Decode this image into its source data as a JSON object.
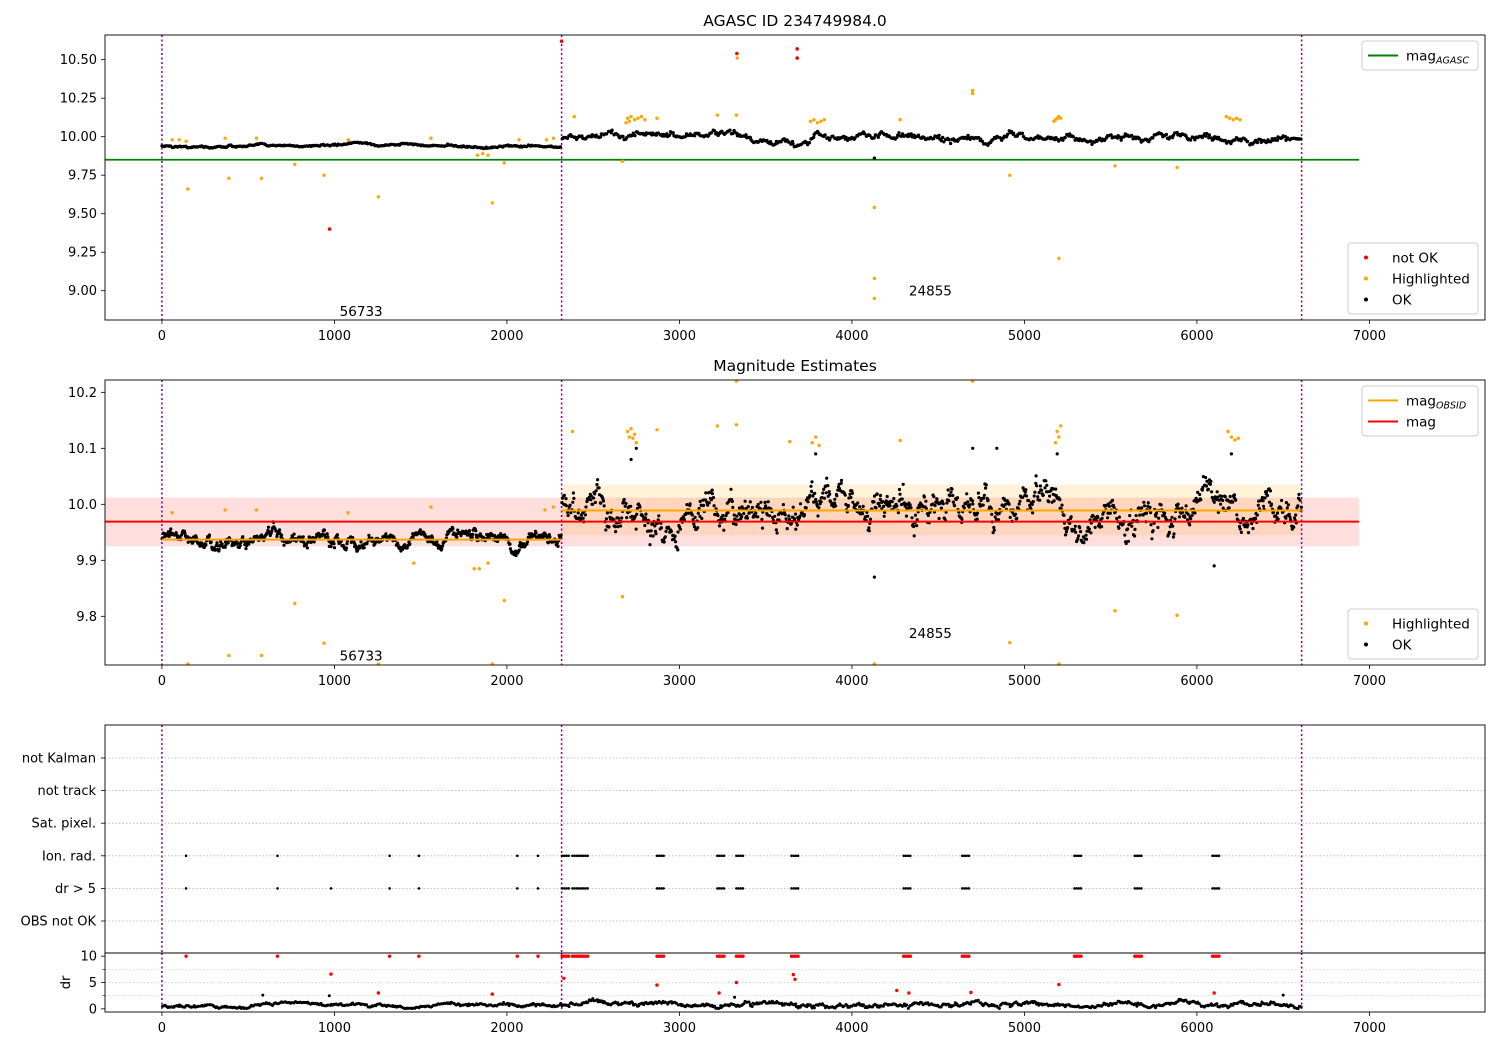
{
  "chart_data": [
    {
      "type": "scatter",
      "title": "AGASC ID 234749984.0",
      "xlabel": "",
      "ylabel": "",
      "xlim": [
        -330,
        7670
      ],
      "ylim": [
        8.81,
        10.66
      ],
      "xticks": [
        0,
        1000,
        2000,
        3000,
        4000,
        5000,
        6000,
        7000
      ],
      "yticks": [
        9.0,
        9.25,
        9.5,
        9.75,
        10.0,
        10.25,
        10.5
      ],
      "ytick_labels": [
        "9.00",
        "9.25",
        "9.50",
        "9.75",
        "10.00",
        "10.25",
        "10.50"
      ],
      "grid": false,
      "obs_boundaries": [
        0,
        2317,
        6607
      ],
      "obs_labels": [
        {
          "text": "56733",
          "x": 1155,
          "y": 8.87
        },
        {
          "text": "24855",
          "x": 4455,
          "y": 9.0
        }
      ],
      "reference_lines": [
        {
          "name": "mag_AGASC",
          "color": "#008000",
          "y": 9.85,
          "x": [
            -330,
            6940
          ]
        }
      ],
      "legends": [
        {
          "placement": "top-right",
          "entries": [
            {
              "label_main": "mag",
              "label_sub": "AGASC",
              "kind": "line",
              "color": "#008000"
            }
          ]
        },
        {
          "placement": "bottom-right",
          "entries": [
            {
              "label_main": "not OK",
              "label_sub": "",
              "kind": "dot",
              "color": "#ff0000"
            },
            {
              "label_main": "Highlighted",
              "label_sub": "",
              "kind": "dot",
              "color": "#ffa500"
            },
            {
              "label_main": "OK",
              "label_sub": "",
              "kind": "dot",
              "color": "#000000"
            }
          ]
        }
      ],
      "series": [
        {
          "name": "not OK",
          "color": "#ff0000",
          "points": [
            [
              972,
              9.4
            ],
            [
              2317,
              10.62
            ],
            [
              3333,
              10.54
            ],
            [
              3683,
              10.57
            ],
            [
              3683,
              10.51
            ]
          ]
        },
        {
          "name": "Highlighted",
          "color": "#ffa500",
          "points": [
            [
              150,
              9.66
            ],
            [
              388,
              9.73
            ],
            [
              577,
              9.73
            ],
            [
              770,
              9.82
            ],
            [
              940,
              9.75
            ],
            [
              1915,
              9.57
            ],
            [
              1255,
              9.61
            ],
            [
              1985,
              9.83
            ],
            [
              2670,
              9.84
            ],
            [
              4130,
              9.54
            ],
            [
              4130,
              9.08
            ],
            [
              4130,
              8.95
            ],
            [
              4915,
              9.75
            ],
            [
              5525,
              9.81
            ],
            [
              5885,
              9.8
            ],
            [
              5200,
              9.21
            ],
            [
              4700,
              10.28
            ],
            [
              4700,
              10.3
            ],
            [
              3335,
              10.51
            ],
            [
              3220,
              10.14
            ],
            [
              2390,
              10.13
            ],
            [
              2870,
              10.12
            ],
            [
              4280,
              10.11
            ],
            [
              3330,
              10.14
            ],
            [
              60,
              9.98
            ],
            [
              100,
              9.98
            ],
            [
              140,
              9.97
            ],
            [
              366,
              9.99
            ],
            [
              548,
              9.99
            ],
            [
              1080,
              9.98
            ],
            [
              1560,
              9.99
            ],
            [
              2070,
              9.98
            ],
            [
              1830,
              9.88
            ],
            [
              1860,
              9.89
            ],
            [
              1890,
              9.88
            ],
            [
              2270,
              9.99
            ],
            [
              2230,
              9.98
            ],
            [
              2700,
              10.12
            ],
            [
              2720,
              10.13
            ],
            [
              2740,
              10.11
            ],
            [
              2760,
              10.12
            ],
            [
              2780,
              10.13
            ],
            [
              2800,
              10.11
            ],
            [
              2690,
              10.09
            ],
            [
              2710,
              10.1
            ],
            [
              3760,
              10.1
            ],
            [
              3780,
              10.11
            ],
            [
              3800,
              10.09
            ],
            [
              3820,
              10.1
            ],
            [
              3840,
              10.11
            ],
            [
              5180,
              10.11
            ],
            [
              5190,
              10.12
            ],
            [
              5200,
              10.13
            ],
            [
              5210,
              10.12
            ],
            [
              5170,
              10.1
            ],
            [
              6170,
              10.13
            ],
            [
              6190,
              10.12
            ],
            [
              6210,
              10.11
            ],
            [
              6230,
              10.12
            ],
            [
              6250,
              10.11
            ]
          ]
        },
        {
          "name": "OK",
          "color": "#000000",
          "segments": [
            {
              "x0": 0,
              "x1": 2317,
              "base": 9.94,
              "amp": 0.015,
              "n": 280
            },
            {
              "x0": 2317,
              "x1": 6607,
              "base": 9.99,
              "amp": 0.045,
              "n": 560
            }
          ],
          "points": [
            [
              4130,
              9.86
            ]
          ]
        }
      ]
    },
    {
      "type": "scatter",
      "title": "Magnitude Estimates",
      "xlabel": "",
      "ylabel": "",
      "xlim": [
        -330,
        7670
      ],
      "ylim": [
        9.713,
        10.222
      ],
      "xticks": [
        0,
        1000,
        2000,
        3000,
        4000,
        5000,
        6000,
        7000
      ],
      "yticks": [
        9.8,
        9.9,
        10.0,
        10.1,
        10.2
      ],
      "ytick_labels": [
        "9.8",
        "9.9",
        "10.0",
        "10.1",
        "10.2"
      ],
      "grid": false,
      "obs_boundaries": [
        0,
        2317,
        6607
      ],
      "obs_labels": [
        {
          "text": "56733",
          "x": 1155,
          "y": 9.73
        },
        {
          "text": "24855",
          "x": 4455,
          "y": 9.77
        }
      ],
      "bands": [
        {
          "name": "mag range",
          "color": "#ff0000",
          "opacity": 0.13,
          "x": [
            -330,
            6940
          ],
          "y": [
            9.925,
            10.012
          ]
        },
        {
          "name": "obs 24855 range",
          "color": "#ffa500",
          "opacity": 0.15,
          "x": [
            2317,
            6607
          ],
          "y": [
            9.945,
            10.035
          ]
        }
      ],
      "reference_lines": [
        {
          "name": "mag",
          "color": "#ff0000",
          "y": 9.969,
          "x": [
            -330,
            6940
          ]
        },
        {
          "name": "mag_OBSID 56733",
          "color": "#ffa500",
          "y": 9.937,
          "x": [
            0,
            2317
          ]
        },
        {
          "name": "mag_OBSID 24855",
          "color": "#ffa500",
          "y": 9.989,
          "x": [
            2317,
            6607
          ]
        }
      ],
      "legends": [
        {
          "placement": "top-right",
          "entries": [
            {
              "label_main": "mag",
              "label_sub": "OBSID",
              "kind": "line",
              "color": "#ffa500"
            },
            {
              "label_main": "mag",
              "label_sub": "",
              "kind": "line",
              "color": "#ff0000"
            }
          ]
        },
        {
          "placement": "bottom-right",
          "entries": [
            {
              "label_main": "Highlighted",
              "label_sub": "",
              "kind": "dot",
              "color": "#ffa500"
            },
            {
              "label_main": "OK",
              "label_sub": "",
              "kind": "dot",
              "color": "#000000"
            }
          ]
        }
      ],
      "series": [
        {
          "name": "Highlighted",
          "color": "#ffa500",
          "points": [
            [
              150,
              9.715
            ],
            [
              388,
              9.73
            ],
            [
              577,
              9.73
            ],
            [
              770,
              9.823
            ],
            [
              940,
              9.752
            ],
            [
              1255,
              9.715
            ],
            [
              1915,
              9.715
            ],
            [
              1985,
              9.828
            ],
            [
              2670,
              9.835
            ],
            [
              3330,
              10.22
            ],
            [
              4700,
              10.22
            ],
            [
              4130,
              9.715
            ],
            [
              5200,
              9.715
            ],
            [
              4915,
              9.753
            ],
            [
              5525,
              9.81
            ],
            [
              5885,
              9.802
            ],
            [
              3220,
              10.14
            ],
            [
              3330,
              10.142
            ],
            [
              2870,
              10.133
            ],
            [
              2380,
              10.13
            ],
            [
              4280,
              10.114
            ],
            [
              3640,
              10.112
            ],
            [
              2700,
              10.13
            ],
            [
              2710,
              10.12
            ],
            [
              2720,
              10.135
            ],
            [
              2730,
              10.118
            ],
            [
              2740,
              10.125
            ],
            [
              2750,
              10.11
            ],
            [
              5190,
              10.13
            ],
            [
              5200,
              10.12
            ],
            [
              5210,
              10.14
            ],
            [
              5180,
              10.11
            ],
            [
              6180,
              10.13
            ],
            [
              6200,
              10.12
            ],
            [
              6220,
              10.115
            ],
            [
              6240,
              10.118
            ],
            [
              3770,
              10.11
            ],
            [
              3790,
              10.12
            ],
            [
              3810,
              10.105
            ],
            [
              60,
              9.985
            ],
            [
              366,
              9.99
            ],
            [
              548,
              9.99
            ],
            [
              1080,
              9.985
            ],
            [
              1560,
              9.995
            ],
            [
              2220,
              9.99
            ],
            [
              2270,
              9.995
            ],
            [
              1810,
              9.885
            ],
            [
              1840,
              9.885
            ],
            [
              1890,
              9.895
            ],
            [
              1460,
              9.895
            ]
          ]
        },
        {
          "name": "OK",
          "color": "#000000",
          "segments": [
            {
              "x0": 0,
              "x1": 2317,
              "base": 9.937,
              "amp": 0.018,
              "n": 700
            },
            {
              "x0": 2317,
              "x1": 6607,
              "base": 9.985,
              "amp": 0.05,
              "n": 1100
            }
          ],
          "points": [
            [
              4130,
              9.87
            ],
            [
              2720,
              10.08
            ],
            [
              2750,
              10.1
            ],
            [
              3790,
              10.09
            ],
            [
              5190,
              10.09
            ],
            [
              6200,
              10.09
            ],
            [
              4700,
              10.1
            ],
            [
              4840,
              10.1
            ],
            [
              6100,
              9.89
            ]
          ]
        }
      ]
    },
    {
      "type": "scatter",
      "title": "",
      "xlabel": "",
      "ylabel": "",
      "xlim": [
        -330,
        7670
      ],
      "xticks": [],
      "category_rows": [
        "not Kalman",
        "not track",
        "Sat. pixel.",
        "Ion. rad.",
        "dr > 5",
        "OBS not OK"
      ],
      "grid": true,
      "obs_boundaries": [
        0,
        2317,
        6607
      ],
      "flag_events": {
        "Ion. rad.": [
          140,
          670,
          1320,
          1490,
          2060,
          2180,
          2320,
          2380,
          2430,
          2870,
          3220,
          3330,
          3650,
          4300,
          4640,
          5290,
          5640,
          6090
        ],
        "dr > 5": [
          140,
          670,
          980,
          1320,
          1490,
          2060,
          2180,
          2320,
          2380,
          2430,
          2870,
          3220,
          3330,
          3650,
          4300,
          4640,
          5290,
          5640,
          6090
        ]
      }
    },
    {
      "type": "scatter",
      "title": "",
      "xlabel": "",
      "ylabel": "dr",
      "xlim": [
        -330,
        7670
      ],
      "ylim": [
        -0.6,
        10.6
      ],
      "xticks": [
        0,
        1000,
        2000,
        3000,
        4000,
        5000,
        6000,
        7000
      ],
      "yticks": [
        0,
        5,
        10
      ],
      "grid": true,
      "obs_boundaries": [
        0,
        2317,
        6607
      ],
      "series": [
        {
          "name": "dr > 5",
          "color": "#ff0000",
          "points": [
            [
              140,
              10
            ],
            [
              670,
              10
            ],
            [
              1320,
              10
            ],
            [
              1490,
              10
            ],
            [
              2060,
              10
            ],
            [
              2180,
              10
            ],
            [
              2320,
              10
            ],
            [
              2380,
              10
            ],
            [
              2430,
              10
            ],
            [
              2870,
              10
            ],
            [
              3220,
              10
            ],
            [
              3330,
              10
            ],
            [
              3650,
              10
            ],
            [
              4300,
              10
            ],
            [
              4640,
              10
            ],
            [
              5290,
              10
            ],
            [
              5640,
              10
            ],
            [
              6090,
              10
            ],
            [
              980,
              6.6
            ],
            [
              1255,
              3.0
            ],
            [
              1915,
              2.8
            ],
            [
              2330,
              5.8
            ],
            [
              2870,
              4.5
            ],
            [
              3230,
              3.0
            ],
            [
              3330,
              5.0
            ],
            [
              3660,
              6.5
            ],
            [
              3670,
              5.6
            ],
            [
              4260,
              3.5
            ],
            [
              4330,
              3.0
            ],
            [
              4690,
              3.1
            ],
            [
              5200,
              4.6
            ],
            [
              6100,
              3.0
            ]
          ]
        },
        {
          "name": "dr",
          "color": "#000000",
          "segments": [
            {
              "x0": 0,
              "x1": 2317,
              "base": 0.7,
              "amp": 0.6,
              "n": 350
            },
            {
              "x0": 2317,
              "x1": 6607,
              "base": 0.9,
              "amp": 0.9,
              "n": 650
            }
          ],
          "points": [
            [
              585,
              2.6
            ],
            [
              970,
              2.5
            ],
            [
              3320,
              2.2
            ],
            [
              6500,
              2.6
            ]
          ]
        }
      ]
    }
  ]
}
